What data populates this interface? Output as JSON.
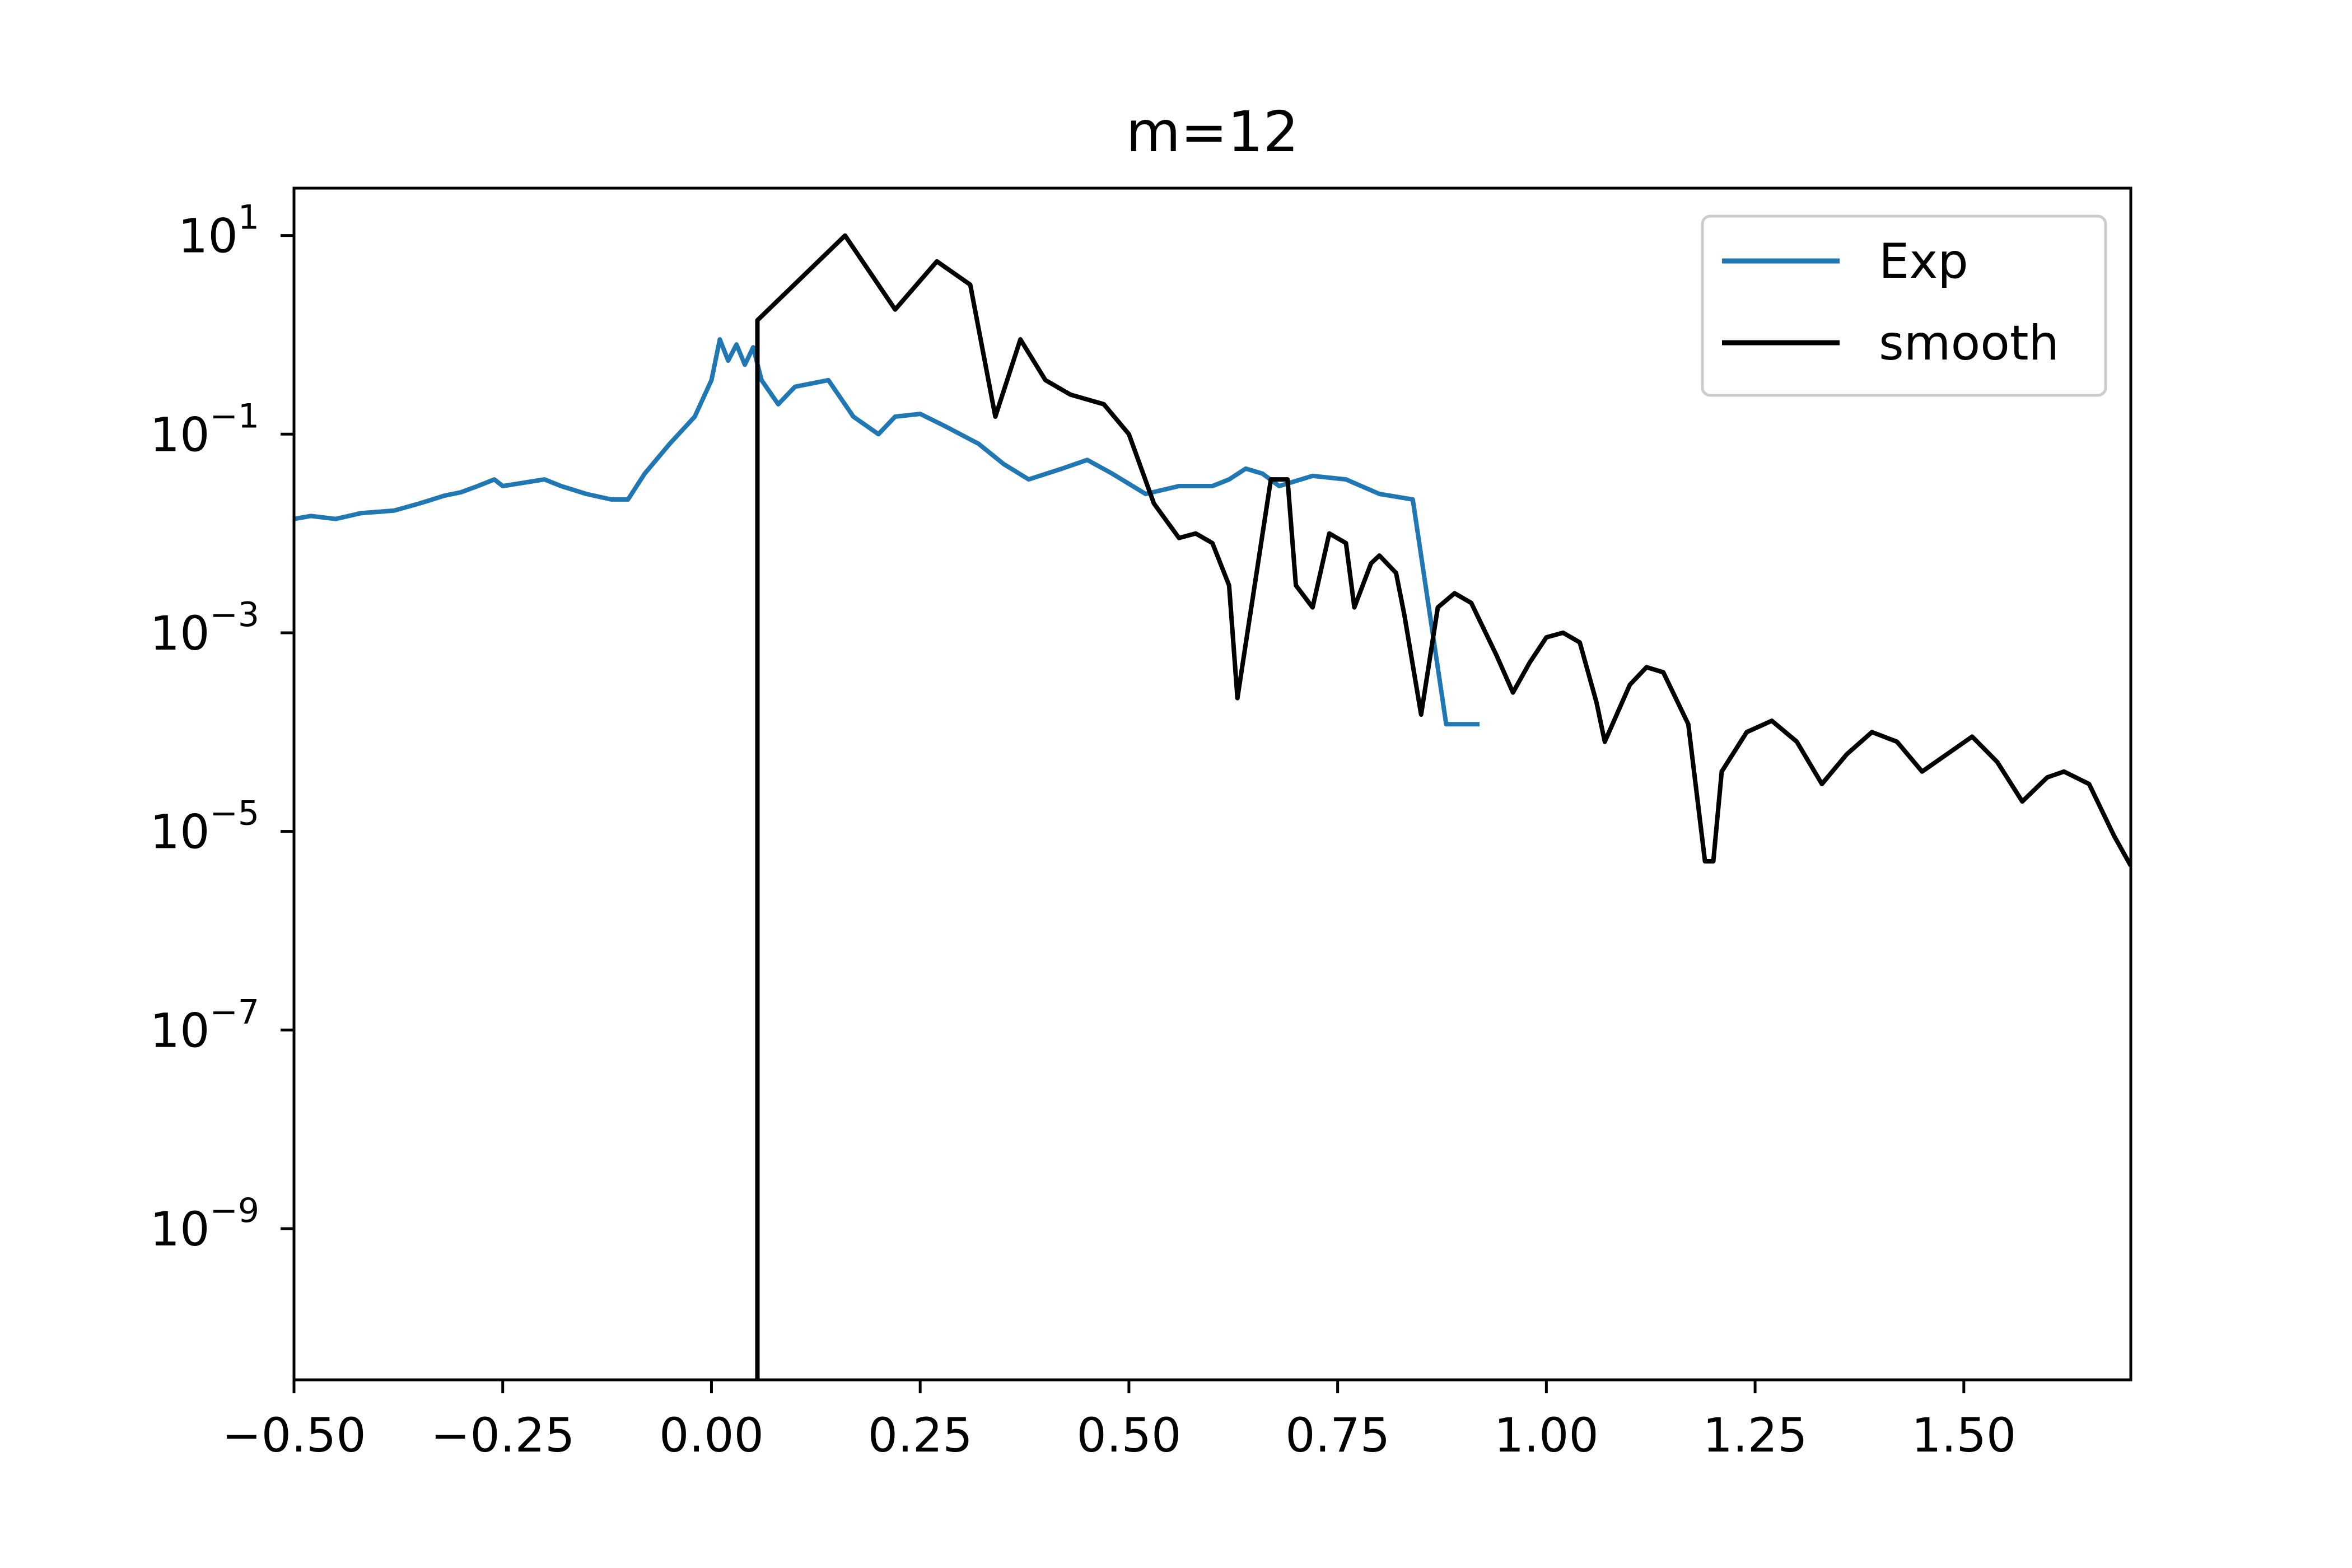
{
  "chart_data": {
    "type": "line",
    "title": "m=12",
    "xlabel": "",
    "ylabel": "",
    "yscale": "log",
    "xlim": [
      -0.5,
      1.7
    ],
    "ylim": [
      3e-11,
      30
    ],
    "grid": false,
    "legend_position": "top-right",
    "x_ticks": [
      {
        "value": -0.5,
        "label": "−0.50"
      },
      {
        "value": -0.25,
        "label": "−0.25"
      },
      {
        "value": 0.0,
        "label": "0.00"
      },
      {
        "value": 0.25,
        "label": "0.25"
      },
      {
        "value": 0.5,
        "label": "0.50"
      },
      {
        "value": 0.75,
        "label": "0.75"
      },
      {
        "value": 1.0,
        "label": "1.00"
      },
      {
        "value": 1.25,
        "label": "1.25"
      },
      {
        "value": 1.5,
        "label": "1.50"
      }
    ],
    "y_ticks": [
      {
        "value": 10,
        "base": "10",
        "exp": "1"
      },
      {
        "value": 0.1,
        "base": "10",
        "exp": "−1"
      },
      {
        "value": 0.001,
        "base": "10",
        "exp": "−3"
      },
      {
        "value": 1e-05,
        "base": "10",
        "exp": "−5"
      },
      {
        "value": 1e-07,
        "base": "10",
        "exp": "−7"
      },
      {
        "value": 1e-09,
        "base": "10",
        "exp": "−9"
      }
    ],
    "series": [
      {
        "name": "Exp",
        "color": "#1f77b4",
        "points": [
          [
            -0.5,
            0.014
          ],
          [
            -0.48,
            0.015
          ],
          [
            -0.45,
            0.014
          ],
          [
            -0.42,
            0.016
          ],
          [
            -0.38,
            0.017
          ],
          [
            -0.35,
            0.02
          ],
          [
            -0.32,
            0.024
          ],
          [
            -0.3,
            0.026
          ],
          [
            -0.28,
            0.03
          ],
          [
            -0.26,
            0.035
          ],
          [
            -0.25,
            0.03
          ],
          [
            -0.2,
            0.035
          ],
          [
            -0.18,
            0.03
          ],
          [
            -0.15,
            0.025
          ],
          [
            -0.12,
            0.022
          ],
          [
            -0.1,
            0.022
          ],
          [
            -0.08,
            0.04
          ],
          [
            -0.05,
            0.08
          ],
          [
            -0.02,
            0.15
          ],
          [
            0.0,
            0.35
          ],
          [
            0.01,
            0.9
          ],
          [
            0.02,
            0.55
          ],
          [
            0.03,
            0.8
          ],
          [
            0.04,
            0.5
          ],
          [
            0.05,
            0.75
          ],
          [
            0.06,
            0.35
          ],
          [
            0.08,
            0.2
          ],
          [
            0.1,
            0.3
          ],
          [
            0.14,
            0.35
          ],
          [
            0.17,
            0.15
          ],
          [
            0.2,
            0.1
          ],
          [
            0.22,
            0.15
          ],
          [
            0.25,
            0.16
          ],
          [
            0.28,
            0.12
          ],
          [
            0.32,
            0.08
          ],
          [
            0.35,
            0.05
          ],
          [
            0.38,
            0.035
          ],
          [
            0.42,
            0.045
          ],
          [
            0.45,
            0.055
          ],
          [
            0.48,
            0.04
          ],
          [
            0.52,
            0.025
          ],
          [
            0.56,
            0.03
          ],
          [
            0.6,
            0.03
          ],
          [
            0.62,
            0.035
          ],
          [
            0.64,
            0.045
          ],
          [
            0.66,
            0.04
          ],
          [
            0.68,
            0.03
          ],
          [
            0.72,
            0.038
          ],
          [
            0.76,
            0.035
          ],
          [
            0.8,
            0.025
          ],
          [
            0.84,
            0.022
          ],
          [
            0.88,
            0.00012
          ],
          [
            0.92,
            0.00012
          ]
        ]
      },
      {
        "name": "smooth",
        "color": "#000000",
        "points": [
          [
            0.055,
            3e-11
          ],
          [
            0.055,
            1.4
          ],
          [
            0.16,
            10
          ],
          [
            0.22,
            1.8
          ],
          [
            0.27,
            5.5
          ],
          [
            0.31,
            3.2
          ],
          [
            0.34,
            0.15
          ],
          [
            0.37,
            0.9
          ],
          [
            0.4,
            0.35
          ],
          [
            0.43,
            0.25
          ],
          [
            0.47,
            0.2
          ],
          [
            0.5,
            0.1
          ],
          [
            0.53,
            0.02
          ],
          [
            0.56,
            0.009
          ],
          [
            0.58,
            0.01
          ],
          [
            0.6,
            0.008
          ],
          [
            0.62,
            0.003
          ],
          [
            0.63,
            0.00022
          ],
          [
            0.67,
            0.035
          ],
          [
            0.69,
            0.035
          ],
          [
            0.7,
            0.003
          ],
          [
            0.72,
            0.0018
          ],
          [
            0.74,
            0.01
          ],
          [
            0.76,
            0.008
          ],
          [
            0.77,
            0.0018
          ],
          [
            0.79,
            0.005
          ],
          [
            0.8,
            0.006
          ],
          [
            0.82,
            0.004
          ],
          [
            0.83,
            0.0015
          ],
          [
            0.85,
            0.00015
          ],
          [
            0.87,
            0.0018
          ],
          [
            0.89,
            0.0025
          ],
          [
            0.91,
            0.002
          ],
          [
            0.94,
            0.0006
          ],
          [
            0.96,
            0.00025
          ],
          [
            0.98,
            0.0005
          ],
          [
            1.0,
            0.0009
          ],
          [
            1.02,
            0.001
          ],
          [
            1.04,
            0.0008
          ],
          [
            1.06,
            0.0002
          ],
          [
            1.07,
            8e-05
          ],
          [
            1.1,
            0.0003
          ],
          [
            1.12,
            0.00045
          ],
          [
            1.14,
            0.0004
          ],
          [
            1.17,
            0.00012
          ],
          [
            1.19,
            5e-06
          ],
          [
            1.2,
            5e-06
          ],
          [
            1.21,
            4e-05
          ],
          [
            1.24,
            0.0001
          ],
          [
            1.27,
            0.00013
          ],
          [
            1.3,
            8e-05
          ],
          [
            1.33,
            3e-05
          ],
          [
            1.36,
            6e-05
          ],
          [
            1.39,
            0.0001
          ],
          [
            1.42,
            8e-05
          ],
          [
            1.45,
            4e-05
          ],
          [
            1.48,
            6e-05
          ],
          [
            1.51,
            9e-05
          ],
          [
            1.54,
            5e-05
          ],
          [
            1.57,
            2e-05
          ],
          [
            1.6,
            3.5e-05
          ],
          [
            1.62,
            4e-05
          ],
          [
            1.65,
            3e-05
          ],
          [
            1.68,
            9e-06
          ],
          [
            1.7,
            4.5e-06
          ]
        ]
      }
    ]
  }
}
